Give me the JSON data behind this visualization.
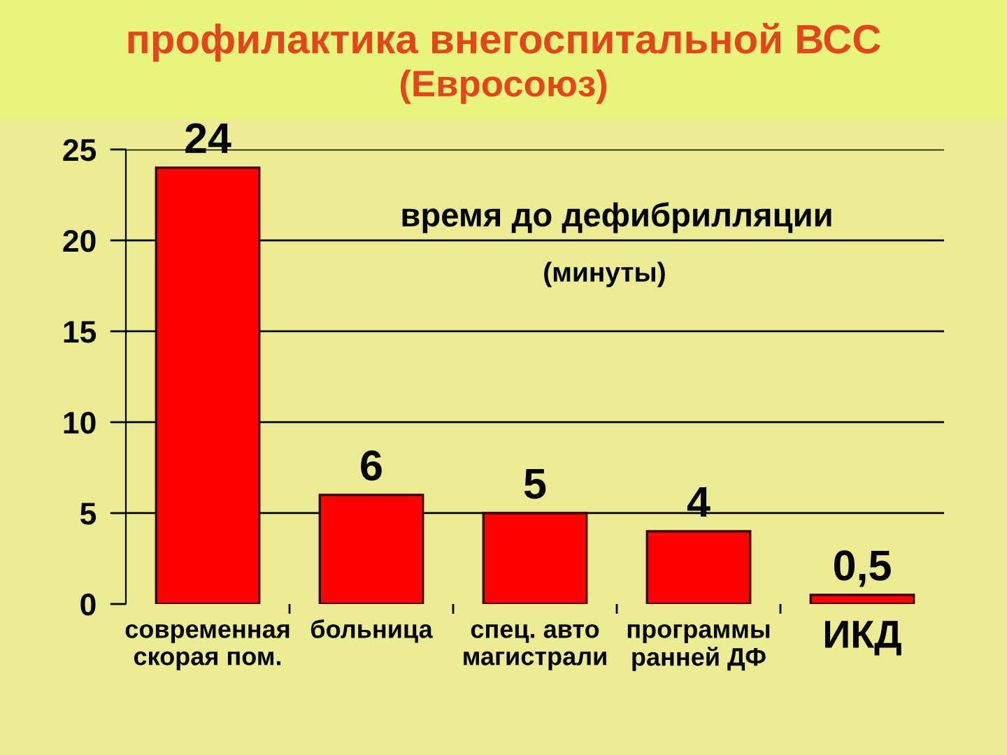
{
  "chart_data": {
    "type": "bar",
    "title": "профилактика внегоспитальной ВСС",
    "subtitle": "(Евросоюз)",
    "categories": [
      "современная\nскорая пом.",
      "больница",
      "спец. авто\nмагистрали",
      "программы\nранней ДФ",
      "ИКД"
    ],
    "values": [
      24,
      6,
      5,
      4,
      0.5
    ],
    "value_labels": [
      "24",
      "6",
      "5",
      "4",
      "0,5"
    ],
    "color": "#ff0000",
    "ylim": [
      0,
      25
    ],
    "yticks": [
      0,
      5,
      10,
      15,
      20,
      25
    ],
    "grid": "y",
    "annotations": [
      "время до дефибрилляции",
      "(минуты)"
    ]
  }
}
